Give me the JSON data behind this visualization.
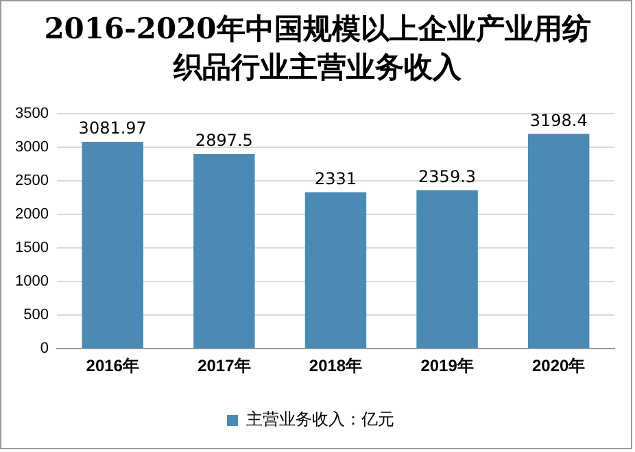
{
  "chart_data": {
    "type": "bar",
    "title": "2016-2020年中国规模以上企业产业用纺织品行业主营业务收入",
    "categories": [
      "2016年",
      "2017年",
      "2018年",
      "2019年",
      "2020年"
    ],
    "series": [
      {
        "name": "主营业务收入：亿元",
        "color": "#4a8ab5",
        "values": [
          3081.97,
          2897.5,
          2331,
          2359.3,
          3198.4
        ]
      }
    ],
    "ylim": [
      0,
      3500
    ],
    "yticks": [
      0,
      500,
      1000,
      1500,
      2000,
      2500,
      3000,
      3500
    ],
    "grid": "y",
    "legend": "bottom",
    "data_labels": true
  }
}
